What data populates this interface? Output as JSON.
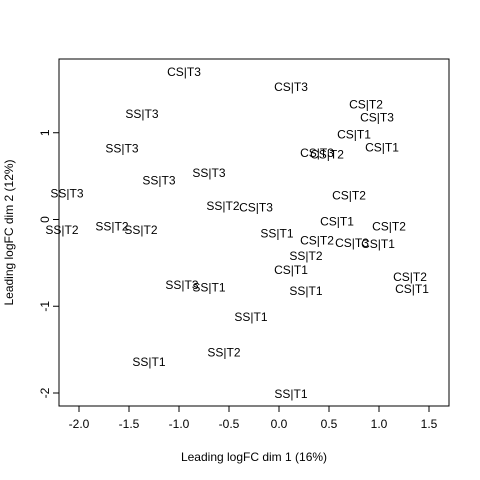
{
  "chart_data": {
    "type": "scatter",
    "title": "",
    "xlabel": "Leading logFC dim 1 (16%)",
    "ylabel": "Leading logFC dim 2 (12%)",
    "xlim": [
      -2.2,
      1.7
    ],
    "ylim": [
      -2.15,
      1.85
    ],
    "x_ticks": [
      -2.0,
      -1.5,
      -1.0,
      -0.5,
      0.0,
      0.5,
      1.0,
      1.5
    ],
    "x_tick_labels": [
      "-2.0",
      "-1.5",
      "-1.0",
      "-0.5",
      "0.0",
      "0.5",
      "1.0",
      "1.5"
    ],
    "y_ticks": [
      -2,
      -1,
      0,
      1
    ],
    "y_tick_labels": [
      "-2",
      "-1",
      "0",
      "1"
    ],
    "grid": false,
    "points": [
      {
        "label": "CS|T3",
        "x": -0.95,
        "y": 1.7
      },
      {
        "label": "CS|T3",
        "x": 0.12,
        "y": 1.53
      },
      {
        "label": "CS|T2",
        "x": 0.87,
        "y": 1.33
      },
      {
        "label": "CS|T3",
        "x": 0.98,
        "y": 1.18
      },
      {
        "label": "SS|T3",
        "x": -1.37,
        "y": 1.22
      },
      {
        "label": "CS|T1",
        "x": 0.75,
        "y": 0.98
      },
      {
        "label": "CS|T1",
        "x": 1.03,
        "y": 0.83
      },
      {
        "label": "SS|T3",
        "x": -1.57,
        "y": 0.82
      },
      {
        "label": "CS|T3",
        "x": 0.38,
        "y": 0.77
      },
      {
        "label": "CS|T2",
        "x": 0.48,
        "y": 0.75
      },
      {
        "label": "SS|T3",
        "x": -0.7,
        "y": 0.54
      },
      {
        "label": "SS|T3",
        "x": -1.2,
        "y": 0.45
      },
      {
        "label": "SS|T3",
        "x": -2.12,
        "y": 0.3
      },
      {
        "label": "CS|T2",
        "x": 0.7,
        "y": 0.28
      },
      {
        "label": "SS|T2",
        "x": -0.56,
        "y": 0.16
      },
      {
        "label": "CS|T3",
        "x": -0.23,
        "y": 0.14
      },
      {
        "label": "CS|T1",
        "x": 0.58,
        "y": -0.02
      },
      {
        "label": "CS|T2",
        "x": 1.1,
        "y": -0.08
      },
      {
        "label": "SS|T2",
        "x": -1.67,
        "y": -0.08
      },
      {
        "label": "SS|T2",
        "x": -1.38,
        "y": -0.12
      },
      {
        "label": "SS|T2",
        "x": -2.17,
        "y": -0.12
      },
      {
        "label": "SS|T1",
        "x": -0.02,
        "y": -0.16
      },
      {
        "label": "CS|T2",
        "x": 0.38,
        "y": -0.24
      },
      {
        "label": "CS|T3",
        "x": 0.73,
        "y": -0.27
      },
      {
        "label": "CS|T1",
        "x": 0.99,
        "y": -0.28
      },
      {
        "label": "SS|T2",
        "x": 0.27,
        "y": -0.42
      },
      {
        "label": "CS|T1",
        "x": 0.12,
        "y": -0.58
      },
      {
        "label": "CS|T2",
        "x": 1.31,
        "y": -0.66
      },
      {
        "label": "SS|T3",
        "x": -0.97,
        "y": -0.75
      },
      {
        "label": "SS|T1",
        "x": -0.7,
        "y": -0.78
      },
      {
        "label": "CS|T1",
        "x": 1.33,
        "y": -0.8
      },
      {
        "label": "SS|T1",
        "x": 0.27,
        "y": -0.82
      },
      {
        "label": "SS|T1",
        "x": -0.28,
        "y": -1.12
      },
      {
        "label": "SS|T2",
        "x": -0.55,
        "y": -1.53
      },
      {
        "label": "SS|T1",
        "x": -1.3,
        "y": -1.64
      },
      {
        "label": "SS|T1",
        "x": 0.12,
        "y": -2.01
      }
    ]
  }
}
